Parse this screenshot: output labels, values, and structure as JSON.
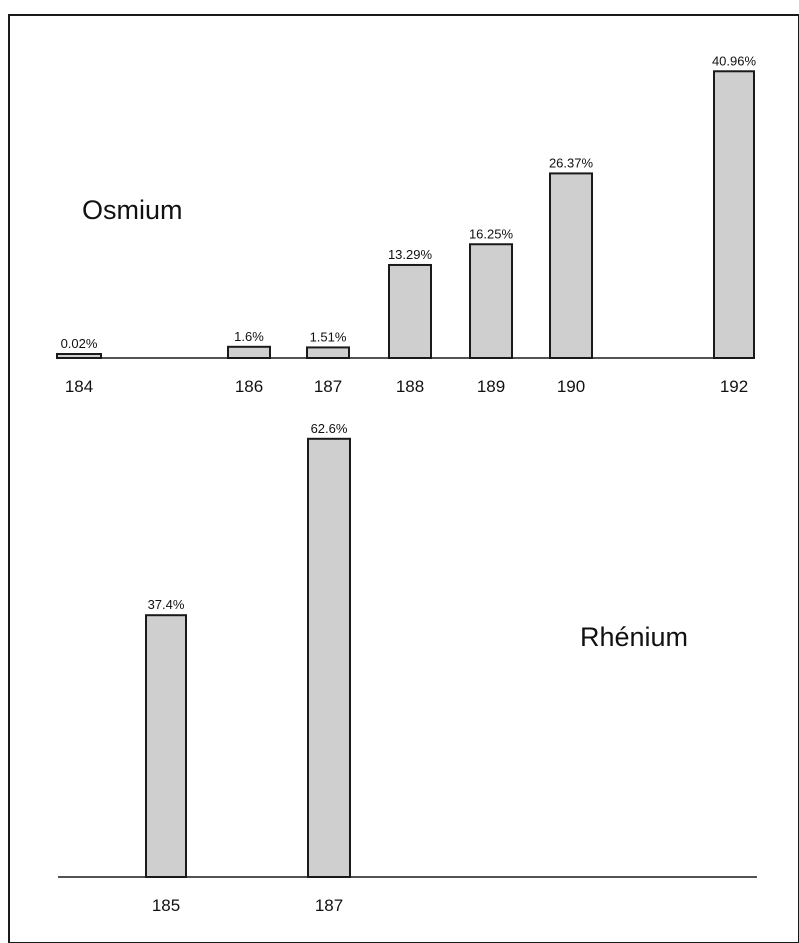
{
  "chart_data": [
    {
      "type": "bar",
      "element": "Osmium",
      "categories": [
        "184",
        "186",
        "187",
        "188",
        "189",
        "190",
        "192"
      ],
      "values": [
        0.02,
        1.6,
        1.51,
        13.29,
        16.25,
        26.37,
        40.96
      ],
      "value_labels": [
        "0.02%",
        "1.6%",
        "1.51%",
        "13.29%",
        "16.25%",
        "26.37%",
        "40.96%"
      ],
      "title": "",
      "xlabel": "",
      "ylabel": "",
      "ylim": [
        0,
        42
      ],
      "grid": false,
      "legend": "none"
    },
    {
      "type": "bar",
      "element": "Rhénium",
      "categories": [
        "185",
        "187"
      ],
      "values": [
        37.4,
        62.6
      ],
      "value_labels": [
        "37.4%",
        "62.6%"
      ],
      "title": "",
      "xlabel": "",
      "ylabel": "",
      "ylim": [
        0,
        63
      ],
      "grid": false,
      "legend": "none"
    }
  ],
  "colors": {
    "bar_fill": "#cfcfcf",
    "bar_stroke": "#1a1a1a",
    "background": "#ffffff"
  }
}
